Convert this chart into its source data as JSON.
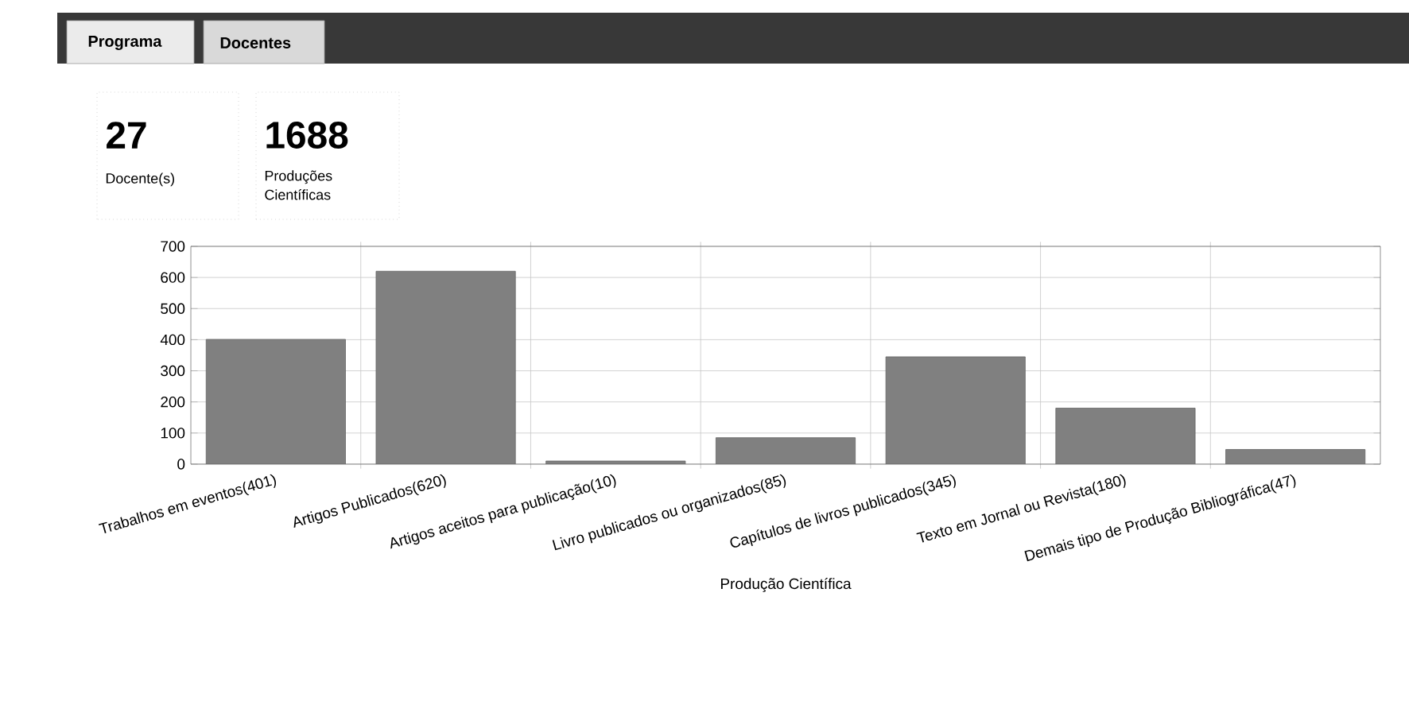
{
  "chart_data": {
    "type": "bar",
    "xlabel": "Produção Científica",
    "categories": [
      "Trabalhos em eventos(401)",
      "Artigos Publicados(620)",
      "Artigos aceitos para publicação(10)",
      "Livro publicados ou organizados(85)",
      "Capítulos de livros publicados(345)",
      "Texto em Jornal ou Revista(180)",
      "Demais tipo de Produção Bibliográfica(47)"
    ],
    "values": [
      401,
      620,
      10,
      85,
      345,
      180,
      47
    ],
    "color": "#808080",
    "ylim": [
      0,
      700
    ],
    "yticks": [
      0,
      100,
      200,
      300,
      400,
      500,
      600,
      700
    ],
    "grid": true,
    "annotations": [
      "Programa",
      "Docentes",
      "27",
      "Docente(s)",
      "1688",
      "Produções Científicas"
    ]
  }
}
